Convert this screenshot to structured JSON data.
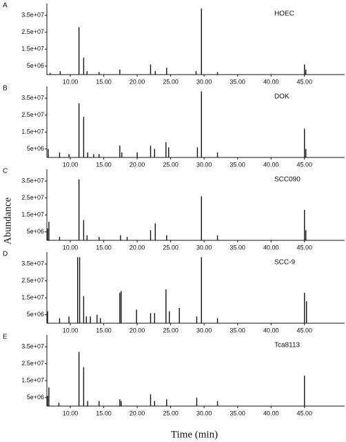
{
  "xlabel": "Time (min)",
  "ylabel": "Abundance",
  "chart_data": [
    {
      "type": "stem",
      "label": "A",
      "title": "HOEC",
      "color": "#111111",
      "x": [
        7.0,
        8.5,
        11.3,
        12.0,
        12.5,
        14.3,
        17.4,
        22.0,
        22.7,
        24.4,
        28.8,
        29.6,
        32.0,
        45.0,
        45.2
      ],
      "values": [
        1000000,
        2000000,
        28000000,
        10000000,
        2000000,
        1500000,
        3000000,
        6000000,
        2000000,
        4000000,
        2000000,
        39000000,
        1500000,
        6000000,
        3000000
      ],
      "xlim": [
        6.5,
        51
      ],
      "ylim": [
        0,
        42000000
      ],
      "xticks": [
        {
          "value": 10,
          "label": "10.00"
        },
        {
          "value": 15,
          "label": "15.00"
        },
        {
          "value": 20,
          "label": "20.00"
        },
        {
          "value": 25,
          "label": "25.00"
        },
        {
          "value": 30,
          "label": "30.00"
        },
        {
          "value": 35,
          "label": "35.00"
        },
        {
          "value": 40,
          "label": "40.00"
        },
        {
          "value": 45,
          "label": "45.00"
        }
      ],
      "yticks": [
        {
          "value": 5000000,
          "label": "5e+06"
        },
        {
          "value": 15000000,
          "label": "1.5e+07"
        },
        {
          "value": 25000000,
          "label": "2.5e+07"
        },
        {
          "value": 35000000,
          "label": "3.5e+07"
        }
      ]
    },
    {
      "type": "stem",
      "label": "B",
      "title": "DOK",
      "color": "#111111",
      "x": [
        6.7,
        8.4,
        9.8,
        11.3,
        12.0,
        12.6,
        13.5,
        14.3,
        17.4,
        17.7,
        20.0,
        22.0,
        22.6,
        24.3,
        24.7,
        29.0,
        29.6,
        32.0,
        45.0,
        45.2
      ],
      "values": [
        5000000,
        3000000,
        2000000,
        32000000,
        24000000,
        3000000,
        2000000,
        2000000,
        7000000,
        3000000,
        3000000,
        7000000,
        5000000,
        9000000,
        6000000,
        6000000,
        39000000,
        3000000,
        17000000,
        5000000
      ],
      "xlim": [
        6.5,
        51
      ],
      "ylim": [
        0,
        42000000
      ],
      "xticks": [
        {
          "value": 10,
          "label": "10.00"
        },
        {
          "value": 15,
          "label": "15.00"
        },
        {
          "value": 20,
          "label": "20.00"
        },
        {
          "value": 25,
          "label": "25.00"
        },
        {
          "value": 30,
          "label": "30.00"
        },
        {
          "value": 35,
          "label": "35.00"
        },
        {
          "value": 40,
          "label": "40.00"
        },
        {
          "value": 45,
          "label": "45.00"
        }
      ],
      "yticks": [
        {
          "value": 5000000,
          "label": "5e+06"
        },
        {
          "value": 15000000,
          "label": "1.5e+07"
        },
        {
          "value": 25000000,
          "label": "2.5e+07"
        },
        {
          "value": 35000000,
          "label": "3.5e+07"
        }
      ]
    },
    {
      "type": "stem",
      "label": "C",
      "title": "SCC090",
      "color": "#111111",
      "x": [
        6.6,
        6.8,
        8.4,
        11.3,
        12.0,
        12.5,
        14.3,
        17.5,
        18.5,
        22.0,
        22.7,
        24.4,
        29.6,
        32.0,
        45.0,
        45.2
      ],
      "values": [
        7000000,
        11000000,
        2000000,
        36000000,
        12000000,
        3000000,
        2000000,
        3000000,
        2000000,
        6000000,
        10000000,
        3000000,
        26000000,
        3000000,
        18000000,
        6000000
      ],
      "xlim": [
        6.5,
        51
      ],
      "ylim": [
        0,
        42000000
      ],
      "xticks": [
        {
          "value": 10,
          "label": "10.00"
        },
        {
          "value": 15,
          "label": "15.00"
        },
        {
          "value": 20,
          "label": "20.00"
        },
        {
          "value": 25,
          "label": "25.00"
        },
        {
          "value": 30,
          "label": "30.00"
        },
        {
          "value": 35,
          "label": "35.00"
        },
        {
          "value": 40,
          "label": "40.00"
        },
        {
          "value": 45,
          "label": "45.00"
        }
      ],
      "yticks": [
        {
          "value": 5000000,
          "label": "5e+06"
        },
        {
          "value": 15000000,
          "label": "1.5e+07"
        },
        {
          "value": 25000000,
          "label": "2.5e+07"
        },
        {
          "value": 35000000,
          "label": "3.5e+07"
        }
      ]
    },
    {
      "type": "stem",
      "label": "D",
      "title": "SCC-9",
      "color": "#111111",
      "x": [
        6.6,
        8.4,
        9.8,
        11.1,
        11.4,
        12.0,
        12.4,
        13.0,
        14.0,
        14.5,
        17.4,
        17.6,
        19.9,
        22.0,
        22.6,
        24.3,
        24.8,
        26.3,
        28.9,
        29.6,
        32.0,
        45.0,
        45.3
      ],
      "values": [
        7000000,
        3000000,
        4000000,
        39000000,
        39000000,
        16000000,
        4000000,
        4000000,
        5000000,
        3000000,
        18000000,
        19000000,
        8000000,
        6000000,
        6000000,
        20000000,
        7000000,
        9000000,
        4000000,
        39000000,
        3000000,
        18000000,
        13000000
      ],
      "xlim": [
        6.5,
        51
      ],
      "ylim": [
        0,
        42000000
      ],
      "xticks": [
        {
          "value": 10,
          "label": "10.00"
        },
        {
          "value": 15,
          "label": "15.00"
        },
        {
          "value": 20,
          "label": "20.00"
        },
        {
          "value": 25,
          "label": "25.00"
        },
        {
          "value": 30,
          "label": "30.00"
        },
        {
          "value": 35,
          "label": "35.00"
        },
        {
          "value": 40,
          "label": "40.00"
        },
        {
          "value": 45,
          "label": "45.00"
        }
      ],
      "yticks": [
        {
          "value": 5000000,
          "label": "5e+06"
        },
        {
          "value": 15000000,
          "label": "1.5e+07"
        },
        {
          "value": 25000000,
          "label": "2.5e+07"
        },
        {
          "value": 35000000,
          "label": "3.5e+07"
        }
      ]
    },
    {
      "type": "stem",
      "label": "E",
      "title": "Tca8113",
      "color": "#111111",
      "x": [
        6.6,
        6.8,
        8.3,
        11.3,
        12.0,
        12.6,
        14.3,
        17.4,
        17.6,
        22.0,
        22.6,
        24.4,
        28.9,
        32.0,
        45.0
      ],
      "values": [
        6000000,
        11000000,
        2000000,
        32000000,
        23000000,
        3000000,
        3000000,
        4000000,
        3000000,
        7000000,
        3000000,
        4000000,
        5000000,
        3000000,
        18000000
      ],
      "xlim": [
        6.5,
        51
      ],
      "ylim": [
        0,
        42000000
      ],
      "xticks": [
        {
          "value": 10,
          "label": "10.00"
        },
        {
          "value": 15,
          "label": "15.00"
        },
        {
          "value": 20,
          "label": "20.00"
        },
        {
          "value": 25,
          "label": "25.00"
        },
        {
          "value": 30,
          "label": "30.00"
        },
        {
          "value": 35,
          "label": "35.00"
        },
        {
          "value": 40,
          "label": "40.00"
        },
        {
          "value": 45,
          "label": "45.00"
        }
      ],
      "yticks": [
        {
          "value": 5000000,
          "label": "5e+06"
        },
        {
          "value": 15000000,
          "label": "1.5e+07"
        },
        {
          "value": 25000000,
          "label": "2.5e+07"
        },
        {
          "value": 35000000,
          "label": "3.5e+07"
        }
      ]
    }
  ]
}
